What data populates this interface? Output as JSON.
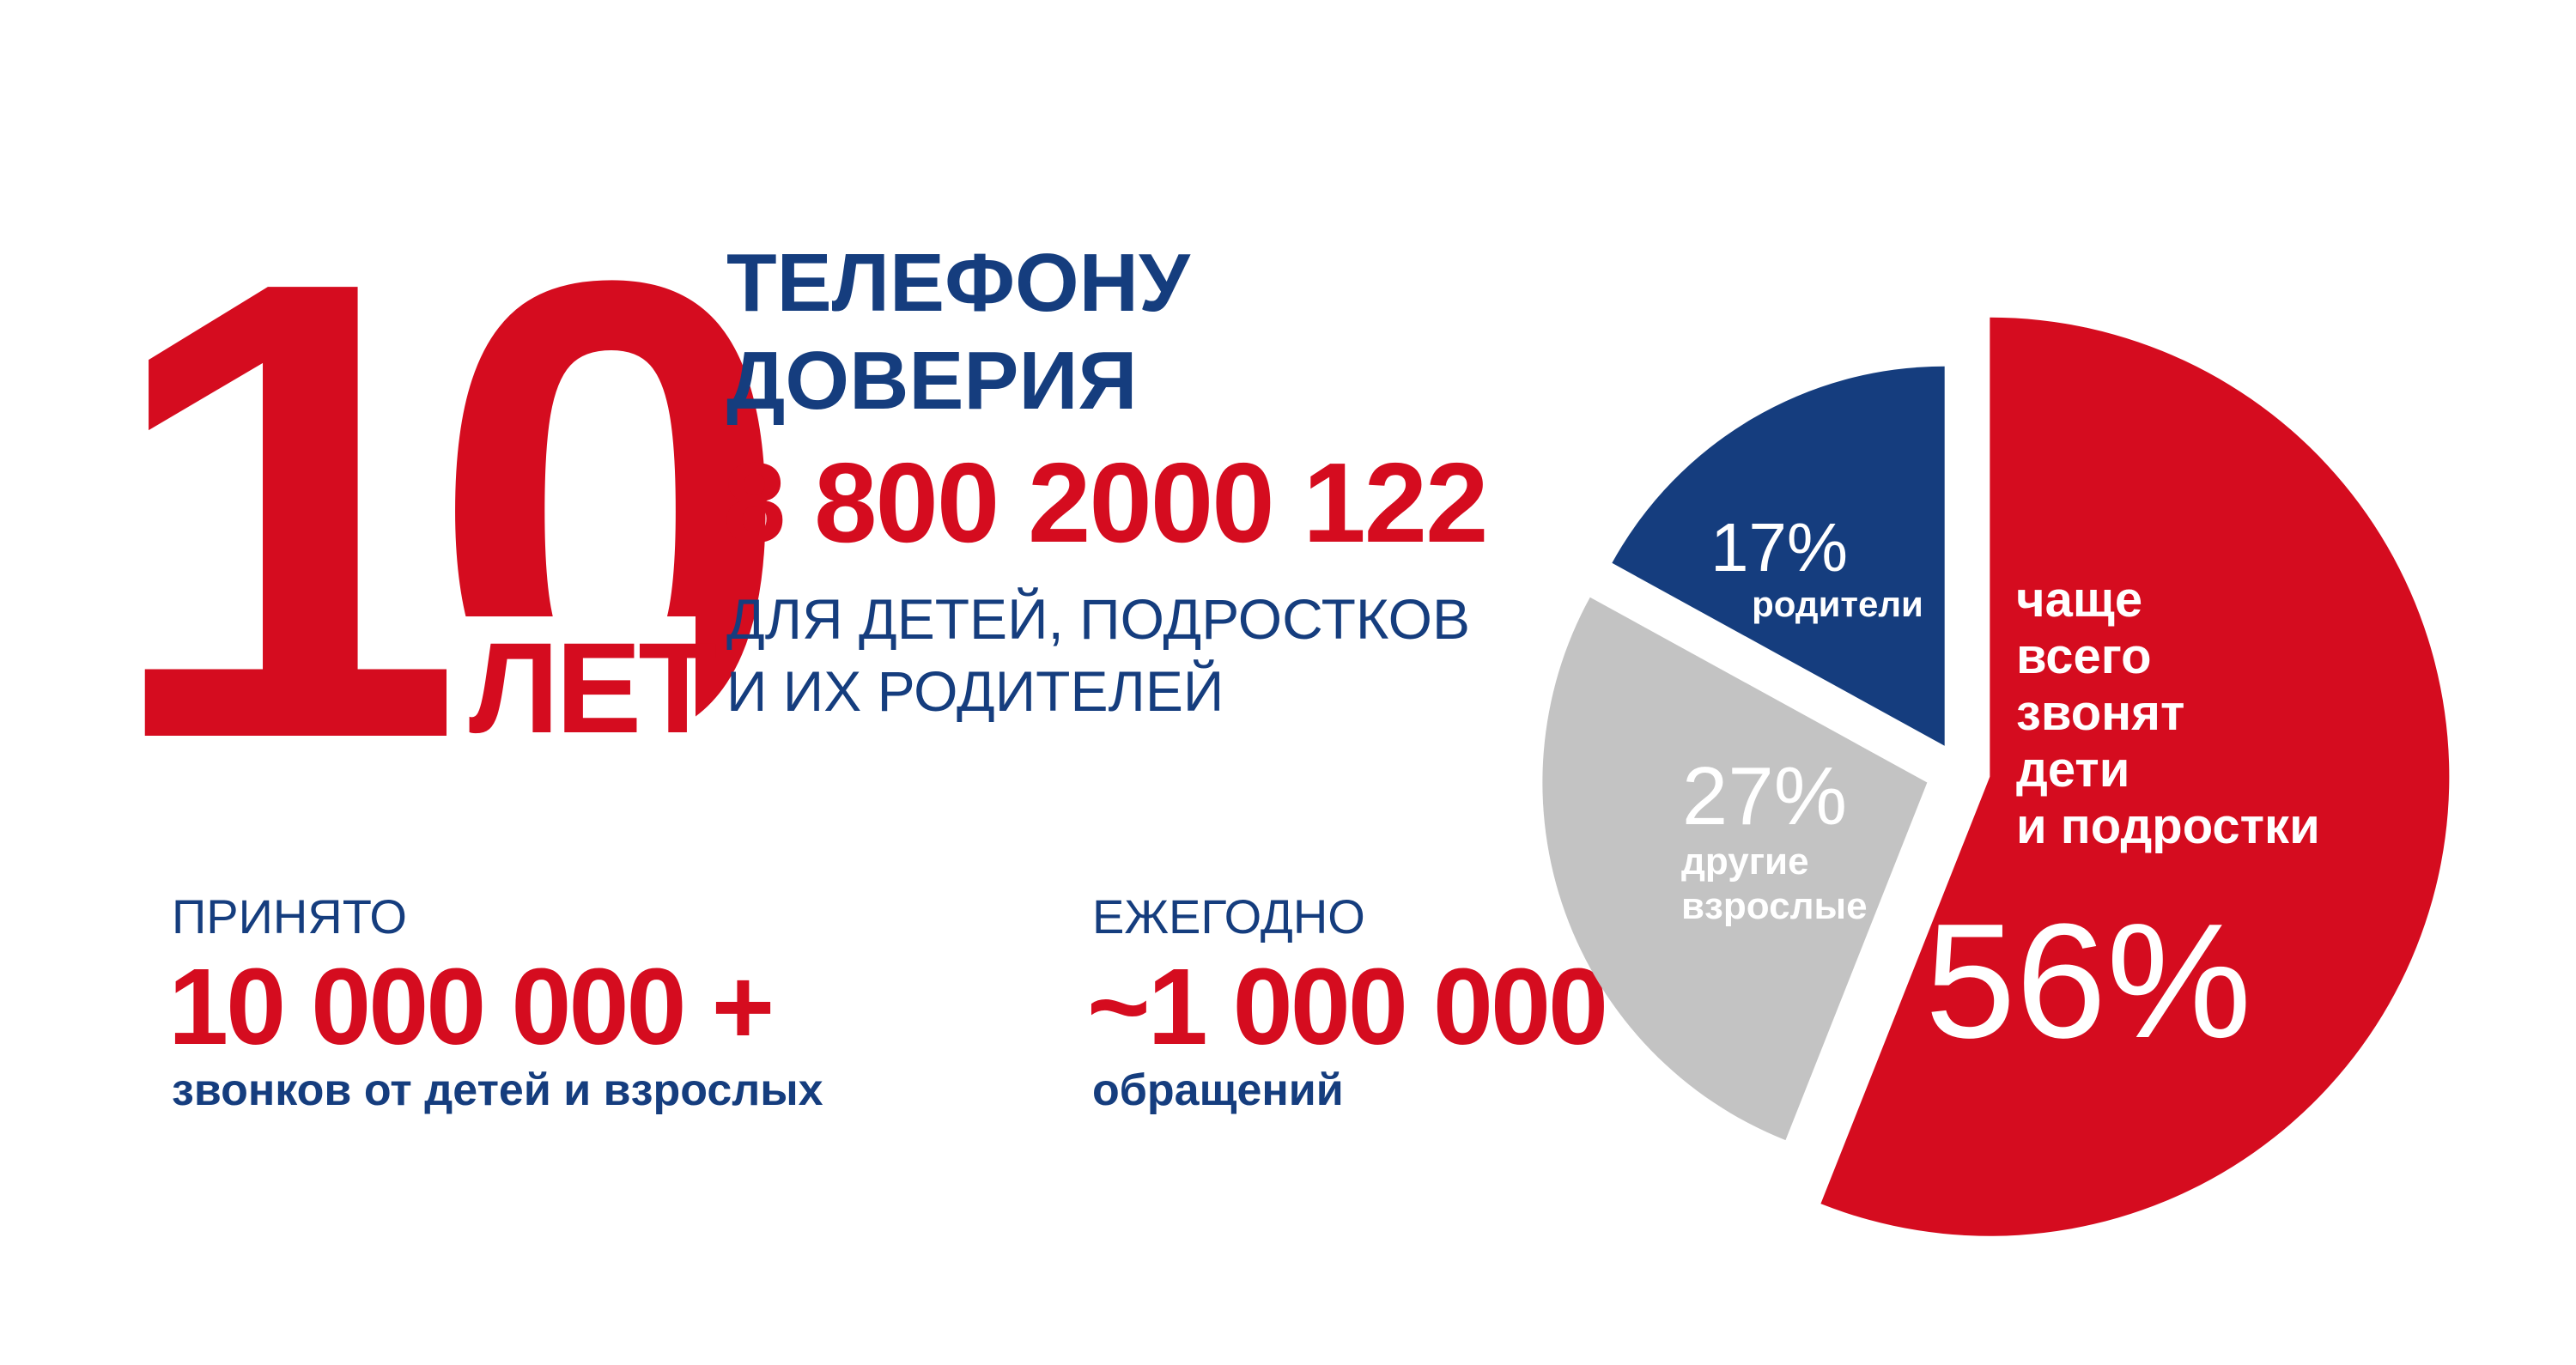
{
  "colors": {
    "red": "#d50c1f",
    "blue": "#153d7e",
    "gray": "#c3c3c3",
    "background": "#ffffff"
  },
  "hero": {
    "number": "10",
    "years_word": "ЛЕТ"
  },
  "title": {
    "line1": "ТЕЛЕФОНУ",
    "line2": "ДОВЕРИЯ",
    "phone": "8 800 2000 122",
    "audience_line1": "ДЛЯ ДЕТЕЙ, ПОДРОСТКОВ",
    "audience_line2": "И ИХ РОДИТЕЛЕЙ"
  },
  "stats": [
    {
      "label": "ПРИНЯТО",
      "value": "10 000 000 +",
      "caption": "звонков от детей и взрослых"
    },
    {
      "label": "ЕЖЕГОДНО",
      "value": "~1 000 000",
      "caption": "обращений"
    }
  ],
  "chart_data": {
    "type": "pie",
    "slices": [
      {
        "label": "родители",
        "value": 17,
        "value_text": "17%",
        "color": "#153d7e",
        "label_lines": [
          "родители"
        ]
      },
      {
        "label": "другие взрослые",
        "value": 27,
        "value_text": "27%",
        "color": "#c3c3c3",
        "label_lines": [
          "другие",
          "взрослые"
        ]
      },
      {
        "label": "чаще всего звонят дети и подростки",
        "value": 56,
        "value_text": "56%",
        "color": "#d50c1f",
        "label_lines": [
          "чаще",
          "всего",
          "звонят",
          "дети",
          "и подростки"
        ]
      }
    ]
  }
}
